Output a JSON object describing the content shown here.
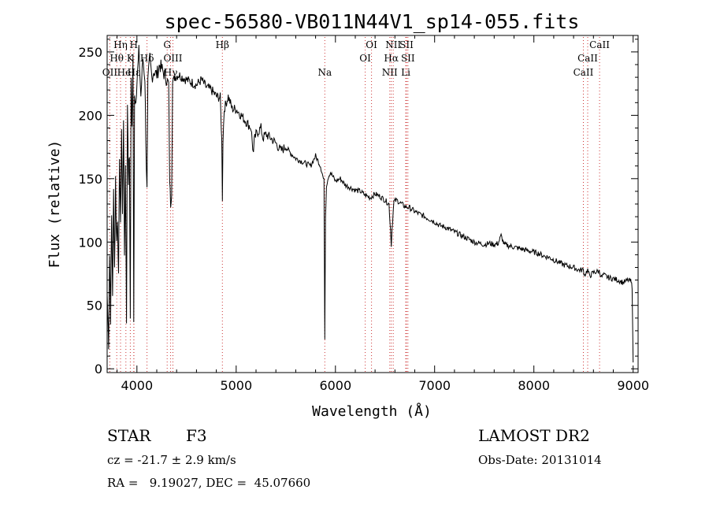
{
  "chart_data": {
    "type": "line",
    "title": "spec-56580-VB011N44V1_sp14-055.fits",
    "xlabel": "Wavelength (Å)",
    "ylabel": "Flux (relative)",
    "xlim": [
      3700,
      9050
    ],
    "ylim": [
      -3,
      263
    ],
    "x_ticks": [
      4000,
      5000,
      6000,
      7000,
      8000,
      9000
    ],
    "y_ticks": [
      0,
      50,
      100,
      150,
      200,
      250
    ],
    "grid": false,
    "colors": {
      "spectrum": "#000000",
      "line_marker": "#cc3333",
      "axes": "#000000"
    },
    "spectrum": {
      "name": "flux",
      "x": [
        3700,
        3715,
        3725,
        3735,
        3745,
        3755,
        3765,
        3775,
        3785,
        3795,
        3805,
        3815,
        3825,
        3835,
        3845,
        3855,
        3865,
        3875,
        3885,
        3895,
        3905,
        3915,
        3925,
        3933,
        3941,
        3950,
        3960,
        3968,
        3976,
        3985,
        4000,
        4020,
        4040,
        4060,
        4080,
        4095,
        4102,
        4110,
        4130,
        4150,
        4170,
        4200,
        4230,
        4260,
        4290,
        4320,
        4330,
        4340,
        4350,
        4360,
        4380,
        4420,
        4460,
        4500,
        4550,
        4600,
        4650,
        4700,
        4750,
        4800,
        4840,
        4855,
        4861,
        4867,
        4880,
        4920,
        4960,
        5000,
        5050,
        5100,
        5150,
        5167,
        5175,
        5183,
        5200,
        5250,
        5270,
        5300,
        5350,
        5400,
        5450,
        5500,
        5550,
        5600,
        5650,
        5700,
        5750,
        5800,
        5850,
        5885,
        5893,
        5900,
        5910,
        5930,
        5950,
        6000,
        6050,
        6100,
        6150,
        6200,
        6250,
        6300,
        6350,
        6400,
        6450,
        6500,
        6540,
        6555,
        6563,
        6570,
        6590,
        6620,
        6650,
        6700,
        6750,
        6800,
        6850,
        6900,
        6950,
        7000,
        7050,
        7100,
        7150,
        7200,
        7250,
        7300,
        7350,
        7400,
        7450,
        7500,
        7550,
        7600,
        7640,
        7670,
        7700,
        7750,
        7800,
        7850,
        7900,
        7950,
        8000,
        8050,
        8100,
        8150,
        8200,
        8250,
        8300,
        8350,
        8400,
        8450,
        8498,
        8510,
        8542,
        8560,
        8600,
        8662,
        8680,
        8700,
        8750,
        8800,
        8850,
        8900,
        8950,
        8975,
        8990,
        9000
      ],
      "y": [
        60,
        20,
        90,
        40,
        120,
        60,
        140,
        80,
        150,
        100,
        120,
        70,
        170,
        110,
        190,
        120,
        200,
        90,
        160,
        40,
        210,
        150,
        170,
        35,
        230,
        190,
        245,
        35,
        220,
        210,
        225,
        250,
        215,
        245,
        230,
        160,
        140,
        225,
        245,
        230,
        235,
        232,
        240,
        235,
        230,
        225,
        150,
        130,
        140,
        225,
        230,
        232,
        230,
        228,
        226,
        224,
        228,
        222,
        220,
        215,
        214,
        180,
        135,
        180,
        205,
        215,
        205,
        205,
        200,
        195,
        190,
        175,
        170,
        180,
        185,
        190,
        182,
        185,
        182,
        178,
        172,
        175,
        170,
        166,
        164,
        162,
        160,
        168,
        160,
        148,
        25,
        120,
        145,
        152,
        155,
        148,
        150,
        145,
        143,
        141,
        140,
        137,
        135,
        138,
        136,
        133,
        130,
        110,
        98,
        110,
        132,
        133,
        131,
        128,
        127,
        124,
        122,
        120,
        118,
        116,
        113,
        112,
        110,
        108,
        106,
        104,
        102,
        100,
        99,
        98,
        99,
        98,
        99,
        105,
        98,
        97,
        96,
        95,
        94,
        93,
        92,
        91,
        89,
        88,
        86,
        84,
        82,
        81,
        80,
        78,
        78,
        74,
        78,
        73,
        76,
        77,
        72,
        74,
        72,
        71,
        70,
        68,
        70,
        69,
        65,
        5
      ]
    },
    "spectral_lines": [
      {
        "label": "Hη",
        "wavelength": 3835,
        "label_row": 0
      },
      {
        "label": "H",
        "wavelength": 3968,
        "label_row": 0
      },
      {
        "label": "G",
        "wavelength": 4305,
        "label_row": 0
      },
      {
        "label": "Hβ",
        "wavelength": 4861,
        "label_row": 0
      },
      {
        "label": "OI",
        "wavelength": 6364,
        "label_row": 0
      },
      {
        "label": "NII",
        "wavelength": 6583,
        "label_row": 0
      },
      {
        "label": "SII",
        "wavelength": 6716,
        "label_row": 0
      },
      {
        "label": "CaII",
        "wavelength": 8662,
        "label_row": 0
      },
      {
        "label": "Hθ",
        "wavelength": 3797,
        "label_row": 1
      },
      {
        "label": "K",
        "wavelength": 3933,
        "label_row": 1
      },
      {
        "label": "Hδ",
        "wavelength": 4102,
        "label_row": 1
      },
      {
        "label": "OIII",
        "wavelength": 4363,
        "label_row": 1
      },
      {
        "label": "OI",
        "wavelength": 6300,
        "label_row": 1
      },
      {
        "label": "Hα",
        "wavelength": 6563,
        "label_row": 1
      },
      {
        "label": "SII",
        "wavelength": 6731,
        "label_row": 1
      },
      {
        "label": "CaII",
        "wavelength": 8542,
        "label_row": 1
      },
      {
        "label": "OII",
        "wavelength": 3727,
        "label_row": 2
      },
      {
        "label": "HeI",
        "wavelength": 3889,
        "label_row": 2
      },
      {
        "label": "Hε",
        "wavelength": 3970,
        "label_row": 2
      },
      {
        "label": "Hγ",
        "wavelength": 4340,
        "label_row": 2
      },
      {
        "label": "Na",
        "wavelength": 5893,
        "label_row": 2
      },
      {
        "label": "NII",
        "wavelength": 6548,
        "label_row": 2
      },
      {
        "label": "Li",
        "wavelength": 6708,
        "label_row": 2
      },
      {
        "label": "CaII",
        "wavelength": 8498,
        "label_row": 2
      }
    ]
  },
  "info": {
    "object_type": "STAR",
    "subclass": "F3",
    "survey": "LAMOST DR2",
    "redshift": "cz = -21.7 ± 2.9 km/s",
    "obs_date": "Obs-Date: 20131014",
    "coordinates": "RA =   9.19027, DEC =  45.07660"
  }
}
